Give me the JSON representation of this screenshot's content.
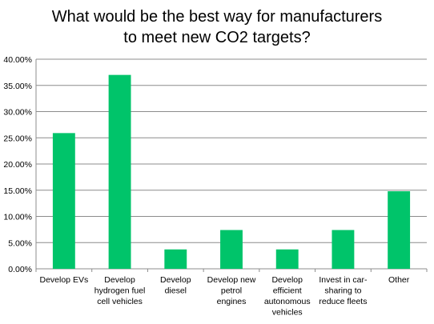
{
  "chart_data": {
    "type": "bar",
    "title_lines": [
      "What would be the best way for manufacturers",
      "to meet new CO2 targets?"
    ],
    "categories": [
      [
        "Develop EVs"
      ],
      [
        "Develop",
        "hydrogen fuel",
        "cell vehicles"
      ],
      [
        "Develop",
        "diesel"
      ],
      [
        "Develop new",
        "petrol",
        "engines"
      ],
      [
        "Develop",
        "efficient",
        "autonomous",
        "vehicles"
      ],
      [
        "Invest in car-",
        "sharing to",
        "reduce fleets"
      ],
      [
        "Other"
      ]
    ],
    "values": [
      25.9,
      37.0,
      3.7,
      7.4,
      3.7,
      7.4,
      14.8
    ],
    "ylim": [
      0,
      40
    ],
    "yticks": [
      0,
      5,
      10,
      15,
      20,
      25,
      30,
      35,
      40
    ],
    "ytick_labels": [
      "0.00%",
      "5.00%",
      "10.00%",
      "15.00%",
      "20.00%",
      "25.00%",
      "30.00%",
      "35.00%",
      "40.00%"
    ],
    "grid": true,
    "bar_color": "#00c46a",
    "grid_color": "#8c8c8c"
  }
}
